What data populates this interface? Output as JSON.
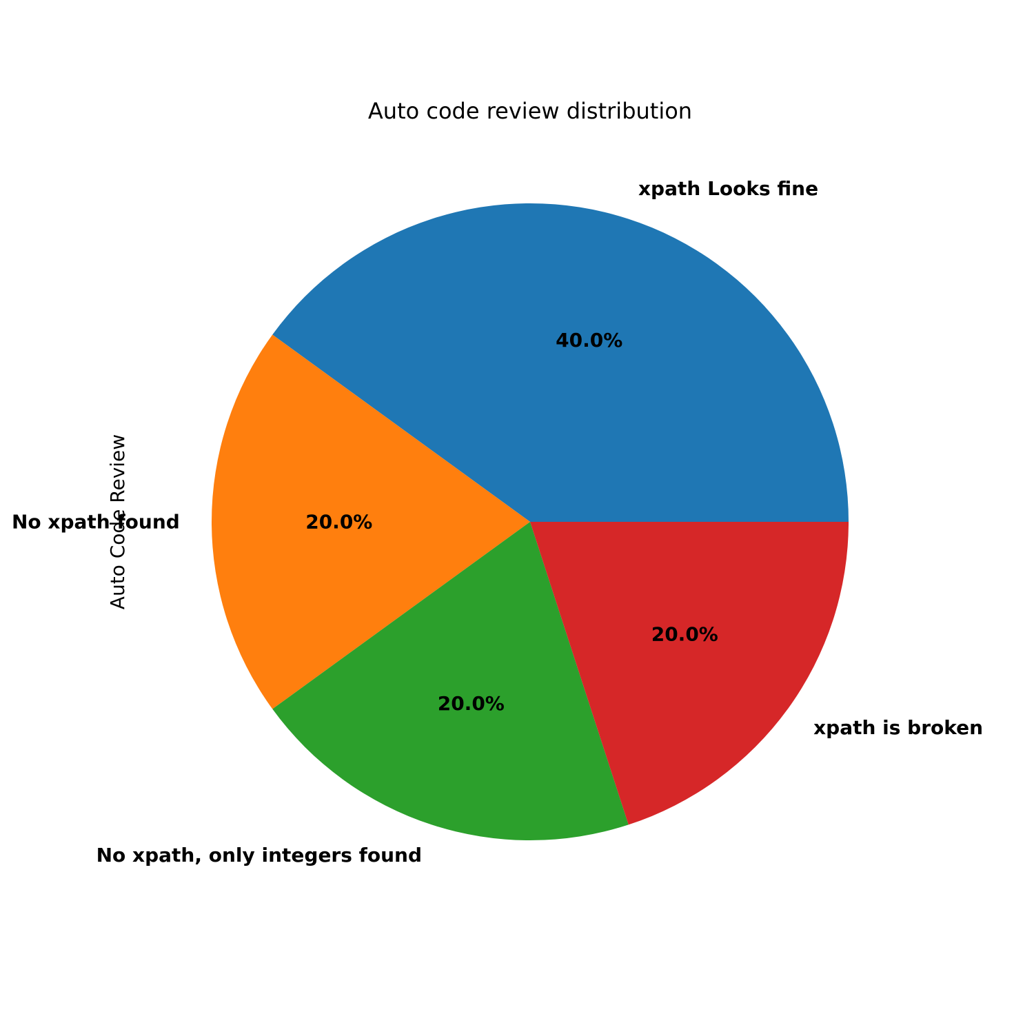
{
  "chart_data": {
    "type": "pie",
    "title": "Auto code review distribution",
    "ylabel": "Auto Code Review",
    "start_angle_deg": 0,
    "direction": "counterclockwise",
    "slices": [
      {
        "label": "xpath Looks fine",
        "value": 40.0,
        "pct_text": "40.0%",
        "color": "#1f77b4"
      },
      {
        "label": "No xpath found",
        "value": 20.0,
        "pct_text": "20.0%",
        "color": "#ff7f0e"
      },
      {
        "label": "No xpath, only integers found",
        "value": 20.0,
        "pct_text": "20.0%",
        "color": "#2ca02c"
      },
      {
        "label": "xpath is broken",
        "value": 20.0,
        "pct_text": "20.0%",
        "color": "#d62728"
      }
    ]
  }
}
